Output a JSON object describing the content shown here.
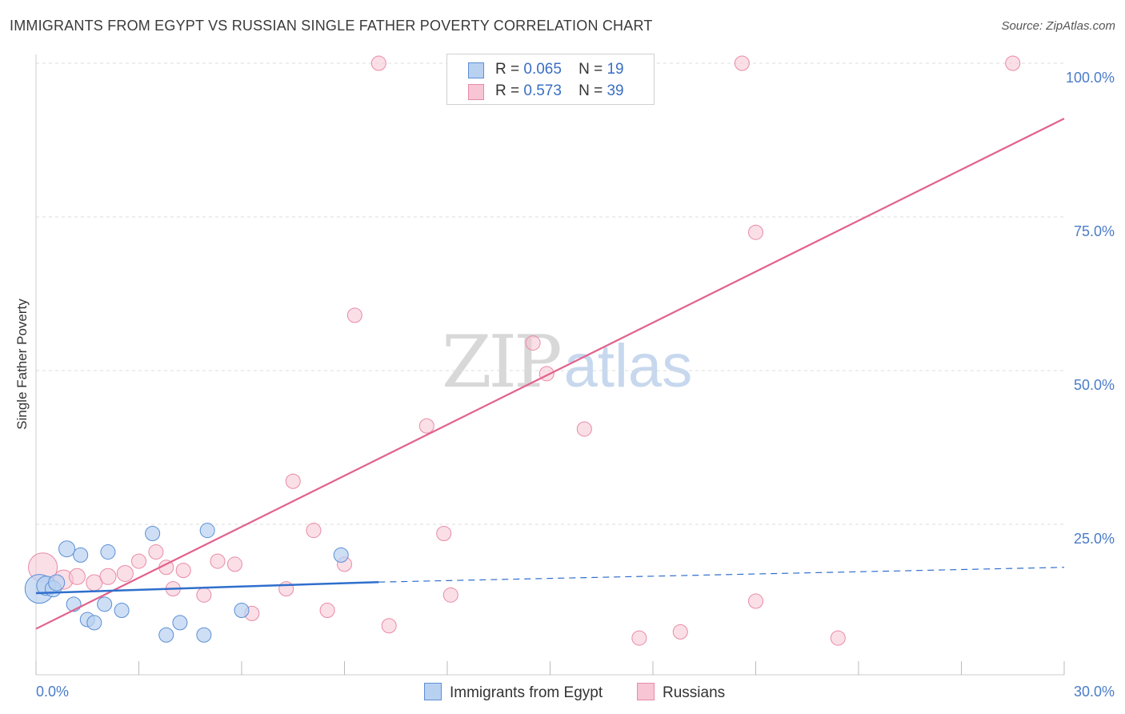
{
  "title": "IMMIGRANTS FROM EGYPT VS RUSSIAN SINGLE FATHER POVERTY CORRELATION CHART",
  "source": "Source: ZipAtlas.com",
  "watermark": {
    "zip": "ZIP",
    "atlas": "atlas"
  },
  "legend": {
    "rows": [
      {
        "r_label": "R =",
        "r_value": "0.065",
        "n_label": "N =",
        "n_value": "19"
      },
      {
        "r_label": "R =",
        "r_value": "0.573",
        "n_label": "N =",
        "n_value": "39"
      }
    ]
  },
  "bottom_legend": {
    "series1": "Immigrants from Egypt",
    "series2": "Russians"
  },
  "colors": {
    "egypt_fill": "#b9d1f1",
    "egypt_stroke": "#5b8fd6",
    "egypt_line": "#2f6fcc",
    "russian_fill": "#f8c5d4",
    "russian_stroke": "#e88aa6",
    "russian_line": "#e2628d",
    "tick": "#4a7cc9",
    "grid": "#dddddd"
  },
  "chart_data": {
    "type": "scatter",
    "title": "IMMIGRANTS FROM EGYPT VS RUSSIAN SINGLE FATHER POVERTY CORRELATION CHART",
    "xlabel": "",
    "ylabel": "Single Father Poverty",
    "xlim": [
      0,
      30
    ],
    "ylim": [
      0,
      100
    ],
    "x_ticks": [
      "0.0%",
      "30.0%"
    ],
    "y_ticks": [
      "100.0%",
      "75.0%",
      "50.0%",
      "25.0%"
    ],
    "y_tick_values": [
      100,
      75,
      50,
      25
    ],
    "series": [
      {
        "name": "Immigrants from Egypt",
        "color": "#5b8fd6",
        "x": [
          0.1,
          0.3,
          0.5,
          0.6,
          0.9,
          1.1,
          1.3,
          1.5,
          1.7,
          2.0,
          2.1,
          2.5,
          3.4,
          3.8,
          4.2,
          4.9,
          5.0,
          6.0,
          8.9
        ],
        "y": [
          14.5,
          15.0,
          14.5,
          15.5,
          21.0,
          12.0,
          20.0,
          9.5,
          9.0,
          12.0,
          20.5,
          11.0,
          23.5,
          7.0,
          9.0,
          7.0,
          24.0,
          11.0,
          20.0
        ],
        "size": [
          18,
          12,
          10,
          10,
          10,
          9,
          9,
          9,
          9,
          9,
          9,
          9,
          9,
          9,
          9,
          9,
          9,
          9,
          9
        ],
        "trend": {
          "x0": 0,
          "y0": 13.8,
          "x1": 10,
          "y1": 15.6,
          "dash_to_x": 30,
          "dash_to_y": 18.0
        }
      },
      {
        "name": "Russians",
        "color": "#e88aa6",
        "x": [
          0.2,
          0.8,
          1.2,
          1.7,
          2.1,
          2.6,
          3.0,
          3.5,
          3.8,
          4.0,
          4.3,
          4.9,
          5.3,
          5.8,
          6.3,
          7.3,
          7.5,
          8.1,
          8.5,
          9.0,
          9.3,
          10.3,
          11.4,
          11.9,
          12.1,
          12.5,
          13.5,
          14.5,
          14.9,
          16.0,
          17.6,
          18.8,
          20.6,
          21.0,
          21.0,
          23.4
        ],
        "y": [
          18.0,
          16.0,
          16.5,
          15.5,
          16.5,
          17.0,
          19.0,
          20.5,
          18.0,
          14.5,
          17.5,
          13.5,
          19.0,
          18.5,
          10.5,
          14.5,
          32.0,
          24.0,
          11.0,
          18.5,
          59.0,
          8.5,
          41.0,
          23.5,
          13.5,
          100,
          100,
          54.5,
          49.5,
          40.5,
          6.5,
          7.5,
          100,
          72.5,
          12.5,
          6.5
        ],
        "size": [
          18,
          12,
          10,
          10,
          10,
          10,
          9,
          9,
          9,
          9,
          9,
          9,
          9,
          9,
          9,
          9,
          9,
          9,
          9,
          9,
          9,
          9,
          9,
          9,
          9,
          9,
          9,
          9,
          9,
          9,
          9,
          9,
          9,
          9,
          9,
          9
        ],
        "trend": {
          "x0": 0,
          "y0": 8.0,
          "x1": 30,
          "y1": 91.0
        }
      }
    ],
    "extra_russian_points": {
      "x": [
        28.5,
        10.0,
        12.6
      ],
      "y": [
        100,
        100,
        100
      ]
    },
    "grid": true,
    "legend_position": "top-center"
  }
}
